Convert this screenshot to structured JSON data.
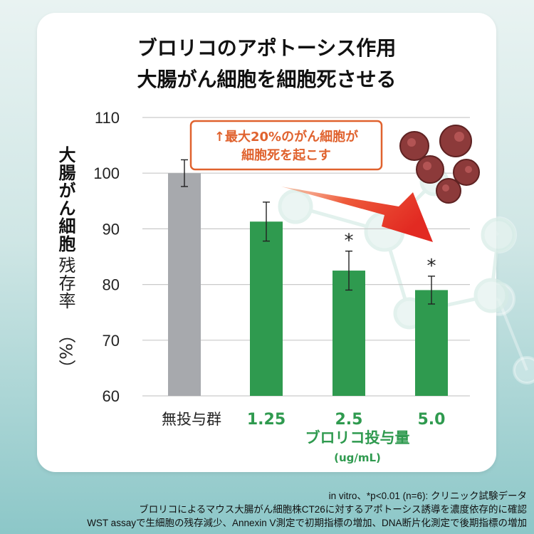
{
  "title_lines": [
    "ブロリコのアポトーシス作用",
    "大腸がん細胞を細胞死させる"
  ],
  "callout": [
    "↑最大20%のがん細胞が",
    "細胞死を起こす"
  ],
  "chart_data": {
    "type": "bar",
    "categories": [
      "無投与群",
      "1.25",
      "2.5",
      "5.0"
    ],
    "values": [
      100,
      91.3,
      82.5,
      79
    ],
    "errors": [
      2.4,
      3.5,
      3.5,
      2.5
    ],
    "significance": [
      "",
      "",
      "*",
      "*"
    ],
    "bar_colors": [
      "#a7a9ad",
      "#2f9a4f",
      "#2f9a4f",
      "#2f9a4f"
    ],
    "ylim": [
      60,
      110
    ],
    "yticks": [
      60,
      70,
      80,
      90,
      100,
      110
    ],
    "ylabel_bold": "大腸がん細胞",
    "ylabel_normal": "残存率",
    "ylabel_unit": "（%）",
    "xlabel": "ブロリコ投与量",
    "xunit": "(ug/mL)",
    "grid": true
  },
  "colors": {
    "accent_green": "#2f9a4f",
    "control_gray": "#a7a9ad",
    "callout_orange": "#e0622e",
    "arrow_red": "#e8352c"
  },
  "footnotes": [
    "in vitro、*p<0.01 (n=6): クリニック試験データ",
    "ブロリコによるマウス大腸がん細胞株CT26に対するアポトーシス誘導を濃度依存的に確認",
    "WST assayで生細胞の残存減少、Annexin V測定で初期指標の増加、DNA断片化測定で後期指標の増加"
  ]
}
